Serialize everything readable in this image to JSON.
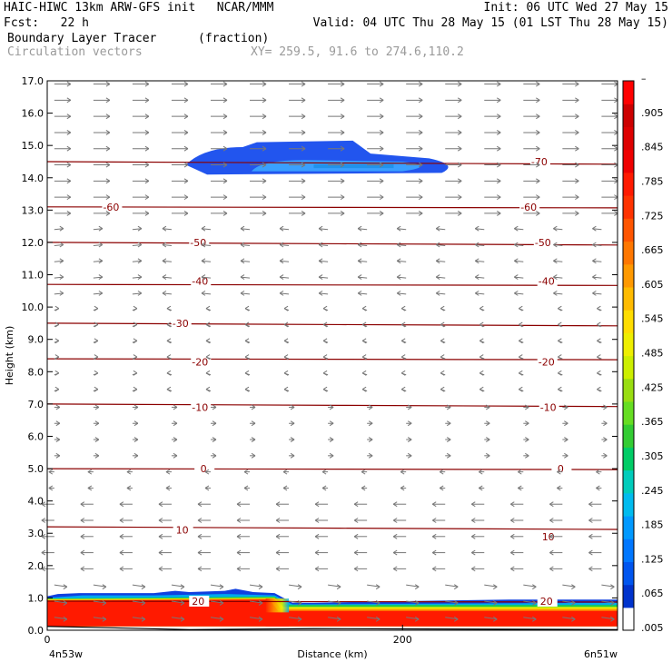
{
  "header": {
    "line1_left": "HAIC-HIWC 13km ARW-GFS init   NCAR/MMM",
    "line1_right": "Init: 06 UTC Wed 27 May 15",
    "line2_left": "Fcst:   22 h",
    "line2_right": "Valid: 04 UTC Thu 28 May 15 (01 LST Thu 28 May 15)",
    "line3_field": "Boundary Layer Tracer",
    "line3_units": "(fraction)",
    "line4_vectors": "Circulation vectors",
    "line4_xy": "XY= 259.5, 91.6 to 274.6,110.2"
  },
  "chart_data": {
    "type": "heatmap",
    "title": "Boundary Layer Tracer",
    "units": "(fraction)",
    "xlabel": "Distance (km)",
    "ylabel": "Height (km)",
    "xlim": [
      0,
      321
    ],
    "ylim": [
      0,
      17
    ],
    "x_ticks": [
      {
        "value": 0,
        "label": "0"
      },
      {
        "value": 200,
        "label": "200"
      }
    ],
    "x_endpoints": [
      "4n53w",
      "6n51w"
    ],
    "y_ticks": [
      "0.0",
      "1.0",
      "2.0",
      "3.0",
      "4.0",
      "5.0",
      "6.0",
      "7.0",
      "8.0",
      "9.0",
      "10.0",
      "11.0",
      "12.0",
      "13.0",
      "14.0",
      "15.0",
      "16.0",
      "17.0"
    ],
    "colorbar": {
      "labels": [
        ".005",
        ".065",
        ".125",
        ".185",
        ".245",
        ".305",
        ".365",
        ".425",
        ".485",
        ".545",
        ".605",
        ".665",
        ".725",
        ".785",
        ".845",
        ".905",
        "–"
      ],
      "colors": [
        "#ffffff",
        "#0033cc",
        "#0055ee",
        "#0077ff",
        "#0099ff",
        "#00bbee",
        "#00ccbb",
        "#00cc66",
        "#33cc33",
        "#66dd22",
        "#99dd11",
        "#ccee00",
        "#eeee00",
        "#ffdd00",
        "#ffbb00",
        "#ff9900",
        "#ff7700",
        "#ff5500",
        "#ff3300",
        "#ff1a00",
        "#ee0000",
        "#dd0000",
        "#cc0000",
        "#ff0000"
      ]
    },
    "contours": [
      {
        "value": "70",
        "height_km": 14.5
      },
      {
        "value": "60",
        "height_km": 13.1
      },
      {
        "value": "50",
        "height_km": 12.0
      },
      {
        "value": "40",
        "height_km": 10.7
      },
      {
        "value": "30",
        "height_km": 9.5
      },
      {
        "value": "20",
        "height_km": 8.4
      },
      {
        "value": "10",
        "height_km": 7.0
      },
      {
        "value": "0",
        "height_km": 5.0
      },
      {
        "value": "10",
        "height_km": 3.2
      },
      {
        "value": "20",
        "height_km": 0.9
      }
    ],
    "contour_labels": [
      {
        "text": "-70",
        "x_km": 277,
        "y_km": 14.5
      },
      {
        "text": "-60",
        "x_km": 36,
        "y_km": 13.1
      },
      {
        "text": "-60",
        "x_km": 271,
        "y_km": 13.1
      },
      {
        "text": "-50",
        "x_km": 85,
        "y_km": 12.0
      },
      {
        "text": "-50",
        "x_km": 279,
        "y_km": 12.0
      },
      {
        "text": "-40",
        "x_km": 86,
        "y_km": 10.8
      },
      {
        "text": "-40",
        "x_km": 281,
        "y_km": 10.8
      },
      {
        "text": "-30",
        "x_km": 75,
        "y_km": 9.5
      },
      {
        "text": "-20",
        "x_km": 86,
        "y_km": 8.3
      },
      {
        "text": "-20",
        "x_km": 281,
        "y_km": 8.3
      },
      {
        "text": "-10",
        "x_km": 86,
        "y_km": 6.9
      },
      {
        "text": "-10",
        "x_km": 282,
        "y_km": 6.9
      },
      {
        "text": "0",
        "x_km": 88,
        "y_km": 5.0
      },
      {
        "text": "0",
        "x_km": 289,
        "y_km": 5.0
      },
      {
        "text": "10",
        "x_km": 76,
        "y_km": 3.1
      },
      {
        "text": "10",
        "x_km": 282,
        "y_km": 2.9
      },
      {
        "text": "20",
        "x_km": 85,
        "y_km": 0.9
      },
      {
        "text": "20",
        "x_km": 281,
        "y_km": 0.9
      }
    ],
    "tracer_regions": [
      {
        "name": "boundary layer",
        "x_km": [
          0,
          321
        ],
        "height_km": [
          0.1,
          1.2
        ],
        "max_fraction": 0.95
      },
      {
        "name": "upper plume",
        "x_km": [
          78,
          232
        ],
        "height_km": [
          14.1,
          15.1
        ],
        "max_fraction": 0.1
      }
    ],
    "grid": false
  }
}
